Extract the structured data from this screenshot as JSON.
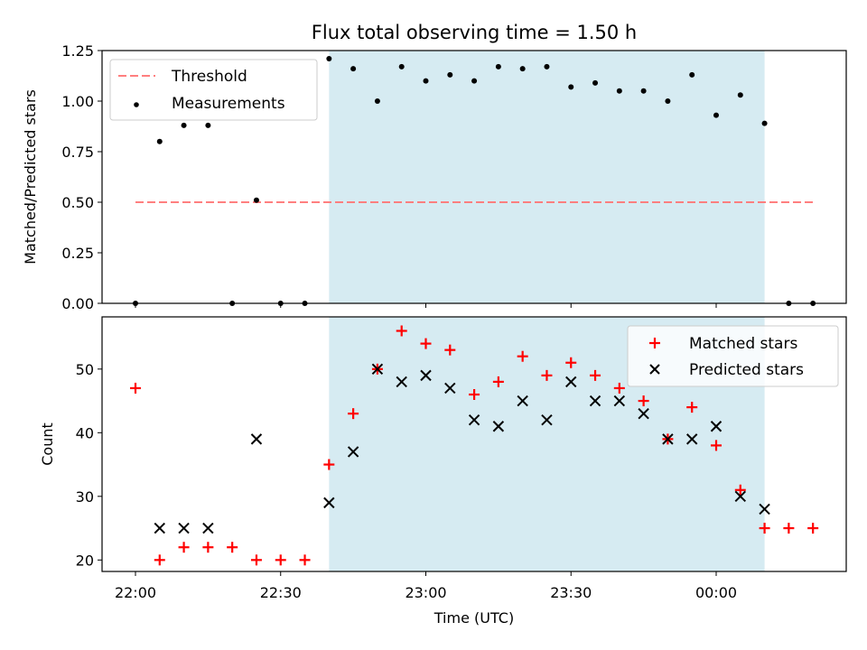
{
  "chart_data": [
    {
      "type": "scatter",
      "title": "Flux total observing time = 1.50 h",
      "xlabel": "",
      "ylabel": "Matched/Predicted stars",
      "ylim": [
        0,
        1.25
      ],
      "yticks": [
        "0.00",
        "0.25",
        "0.50",
        "0.75",
        "1.00",
        "1.25"
      ],
      "highlight_span": {
        "start": "22:40",
        "end": "00:10",
        "color": "#add8e6"
      },
      "legend_position": "upper left",
      "threshold": {
        "name": "Threshold",
        "value": 0.5,
        "x_start": "22:00",
        "x_end": "00:20",
        "color": "#ff7f7f",
        "style": "dashed"
      },
      "series": [
        {
          "name": "Measurements",
          "color": "#000000",
          "marker": "dot",
          "x": [
            "22:00",
            "22:05",
            "22:10",
            "22:15",
            "22:20",
            "22:25",
            "22:30",
            "22:35",
            "22:40",
            "22:45",
            "22:50",
            "22:55",
            "23:00",
            "23:05",
            "23:10",
            "23:15",
            "23:20",
            "23:25",
            "23:30",
            "23:35",
            "23:40",
            "23:45",
            "23:50",
            "23:55",
            "00:00",
            "00:05",
            "00:10",
            "00:15",
            "00:20"
          ],
          "y": [
            0.0,
            0.8,
            0.88,
            0.88,
            0.0,
            0.51,
            0.0,
            0.0,
            1.21,
            1.16,
            1.0,
            1.17,
            1.1,
            1.13,
            1.1,
            1.17,
            1.16,
            1.17,
            1.07,
            1.09,
            1.05,
            1.05,
            1.0,
            1.13,
            0.93,
            1.03,
            0.89,
            0.0,
            0.0
          ]
        }
      ]
    },
    {
      "type": "scatter",
      "title": "",
      "xlabel": "Time (UTC)",
      "ylabel": "Count",
      "ylim": [
        18.2,
        58.2
      ],
      "yticks": [
        "20",
        "30",
        "40",
        "50"
      ],
      "xticks": [
        "22:00",
        "22:30",
        "23:00",
        "23:30",
        "00:00"
      ],
      "highlight_span": {
        "start": "22:40",
        "end": "00:10",
        "color": "#add8e6"
      },
      "legend_position": "upper right",
      "series": [
        {
          "name": "Matched stars",
          "color": "#ff0000",
          "marker": "plus",
          "x": [
            "22:00",
            "22:05",
            "22:10",
            "22:15",
            "22:20",
            "22:25",
            "22:30",
            "22:35",
            "22:40",
            "22:45",
            "22:50",
            "22:55",
            "23:00",
            "23:05",
            "23:10",
            "23:15",
            "23:20",
            "23:25",
            "23:30",
            "23:35",
            "23:40",
            "23:45",
            "23:50",
            "23:55",
            "00:00",
            "00:05",
            "00:10",
            "00:15",
            "00:20"
          ],
          "y": [
            47,
            20,
            22,
            22,
            22,
            20,
            20,
            20,
            35,
            43,
            50,
            56,
            54,
            53,
            46,
            48,
            52,
            49,
            51,
            49,
            47,
            45,
            39,
            44,
            38,
            31,
            25,
            25,
            25
          ]
        },
        {
          "name": "Predicted stars",
          "color": "#000000",
          "marker": "x",
          "x": [
            "22:05",
            "22:10",
            "22:15",
            "22:25",
            "22:40",
            "22:45",
            "22:50",
            "22:55",
            "23:00",
            "23:05",
            "23:10",
            "23:15",
            "23:20",
            "23:25",
            "23:30",
            "23:35",
            "23:40",
            "23:45",
            "23:50",
            "23:55",
            "00:00",
            "00:05",
            "00:10"
          ],
          "y": [
            25,
            25,
            25,
            39,
            29,
            37,
            50,
            48,
            49,
            47,
            42,
            41,
            45,
            42,
            48,
            45,
            45,
            43,
            39,
            39,
            41,
            30,
            28
          ]
        }
      ]
    }
  ]
}
